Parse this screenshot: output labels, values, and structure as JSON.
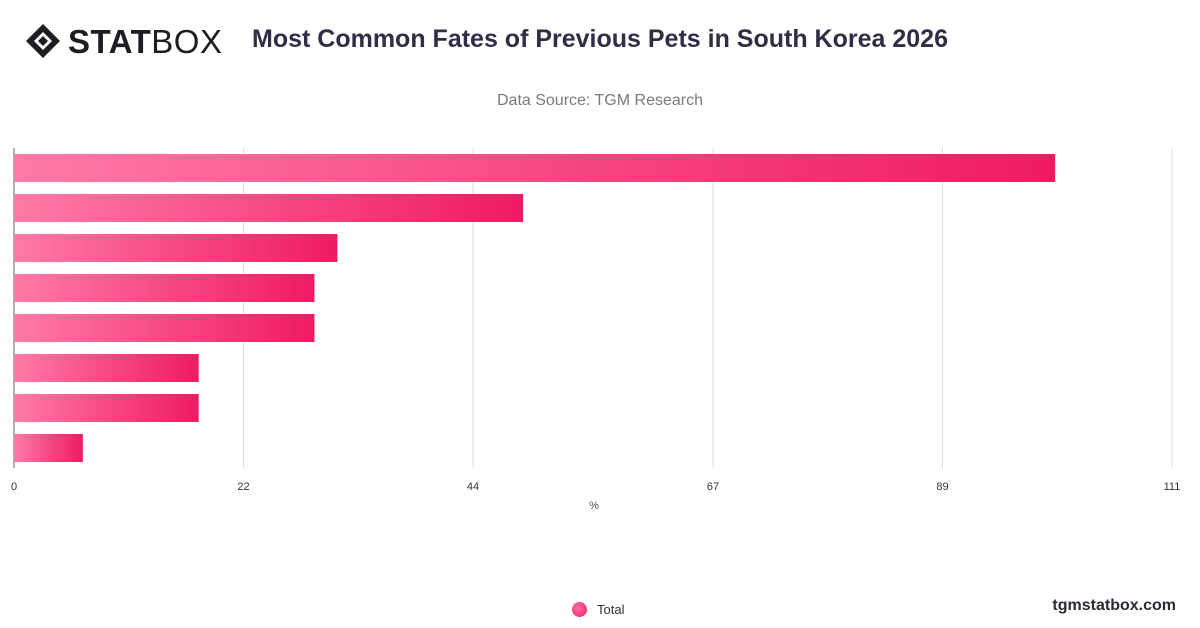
{
  "brand": {
    "logo_bold": "STAT",
    "logo_light": "BOX",
    "icon": "statbox-diamond-icon"
  },
  "header": {
    "title": "Most Common Fates of Previous Pets in South Korea 2026",
    "subtitle": "Data Source: TGM Research"
  },
  "footer": {
    "site": "tgmstatbox.com"
  },
  "colors": {
    "bar_start": "#ff7aa6",
    "bar_end": "#ef1a64",
    "grid": "#dddddd",
    "axis_text": "#333333"
  },
  "chart_data": {
    "type": "bar",
    "orientation": "horizontal",
    "categories": [
      "",
      "",
      "",
      "",
      "",
      "",
      "",
      ""
    ],
    "series": [
      {
        "name": "Total",
        "values": [
          99.8,
          48.8,
          31.0,
          28.8,
          28.8,
          17.7,
          17.7,
          6.6
        ]
      }
    ],
    "xlim": [
      0,
      111
    ],
    "x_ticks": [
      "0",
      "22",
      "44",
      "67",
      "89",
      "111"
    ],
    "xlabel": "%",
    "ylabel": "",
    "grid": true,
    "legend_position": "bottom"
  }
}
